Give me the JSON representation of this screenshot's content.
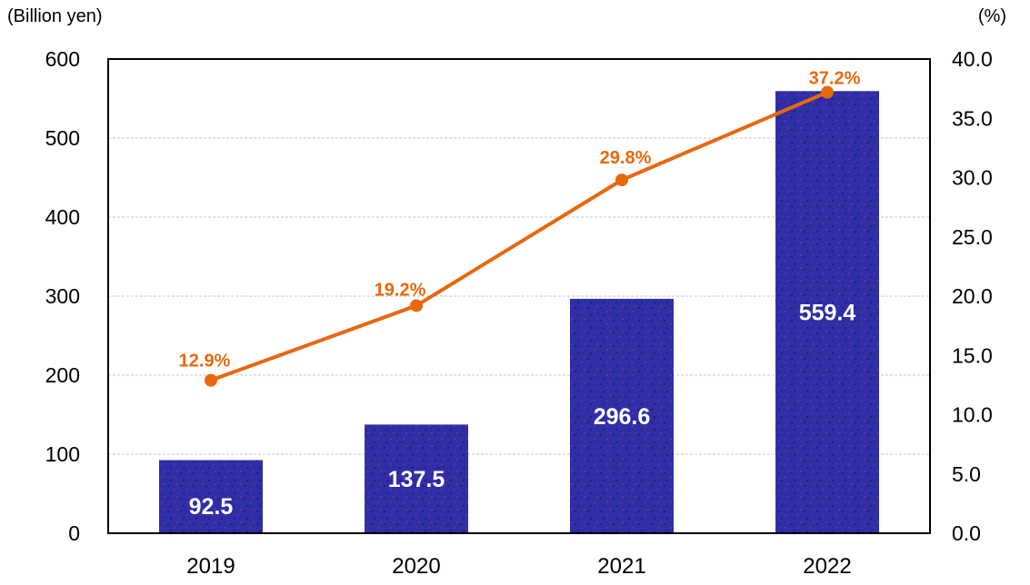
{
  "chart_data": {
    "type": "bar",
    "subtype": "combo-bar-line-dual-axis",
    "categories": [
      "2019",
      "2020",
      "2021",
      "2022"
    ],
    "series": [
      {
        "name": "Amount",
        "type": "bar",
        "axis": "left",
        "values": [
          92.5,
          137.5,
          296.6,
          559.4
        ],
        "data_labels": [
          "92.5",
          "137.5",
          "296.6",
          "559.4"
        ],
        "color": "#2E2EA6",
        "label_color": "#FFFFFF"
      },
      {
        "name": "Ratio",
        "type": "line",
        "axis": "right",
        "values": [
          12.9,
          19.2,
          29.8,
          37.2
        ],
        "data_labels": [
          "12.9%",
          "19.2%",
          "29.8%",
          "37.2%"
        ],
        "color": "#E8680F",
        "label_color": "#E8680F"
      }
    ],
    "left_axis": {
      "label": "(Billion yen)",
      "min": 0,
      "max": 600,
      "step": 100,
      "ticks": [
        "600",
        "500",
        "400",
        "300",
        "200",
        "100",
        "0"
      ]
    },
    "right_axis": {
      "label": "(%)",
      "min": 0,
      "max": 40,
      "step": 5,
      "ticks": [
        "40.0",
        "35.0",
        "30.0",
        "25.0",
        "20.0",
        "15.0",
        "10.0",
        "5.0",
        "0.0"
      ]
    },
    "grid": true,
    "legend": "none",
    "colors": {
      "grid_line": "#C9C9C9",
      "axis_border": "#000000",
      "tick_text": "#000000",
      "bar_dot_dark": "#1B1B6E",
      "bar_dot_magenta": "#7C2E8E"
    }
  }
}
